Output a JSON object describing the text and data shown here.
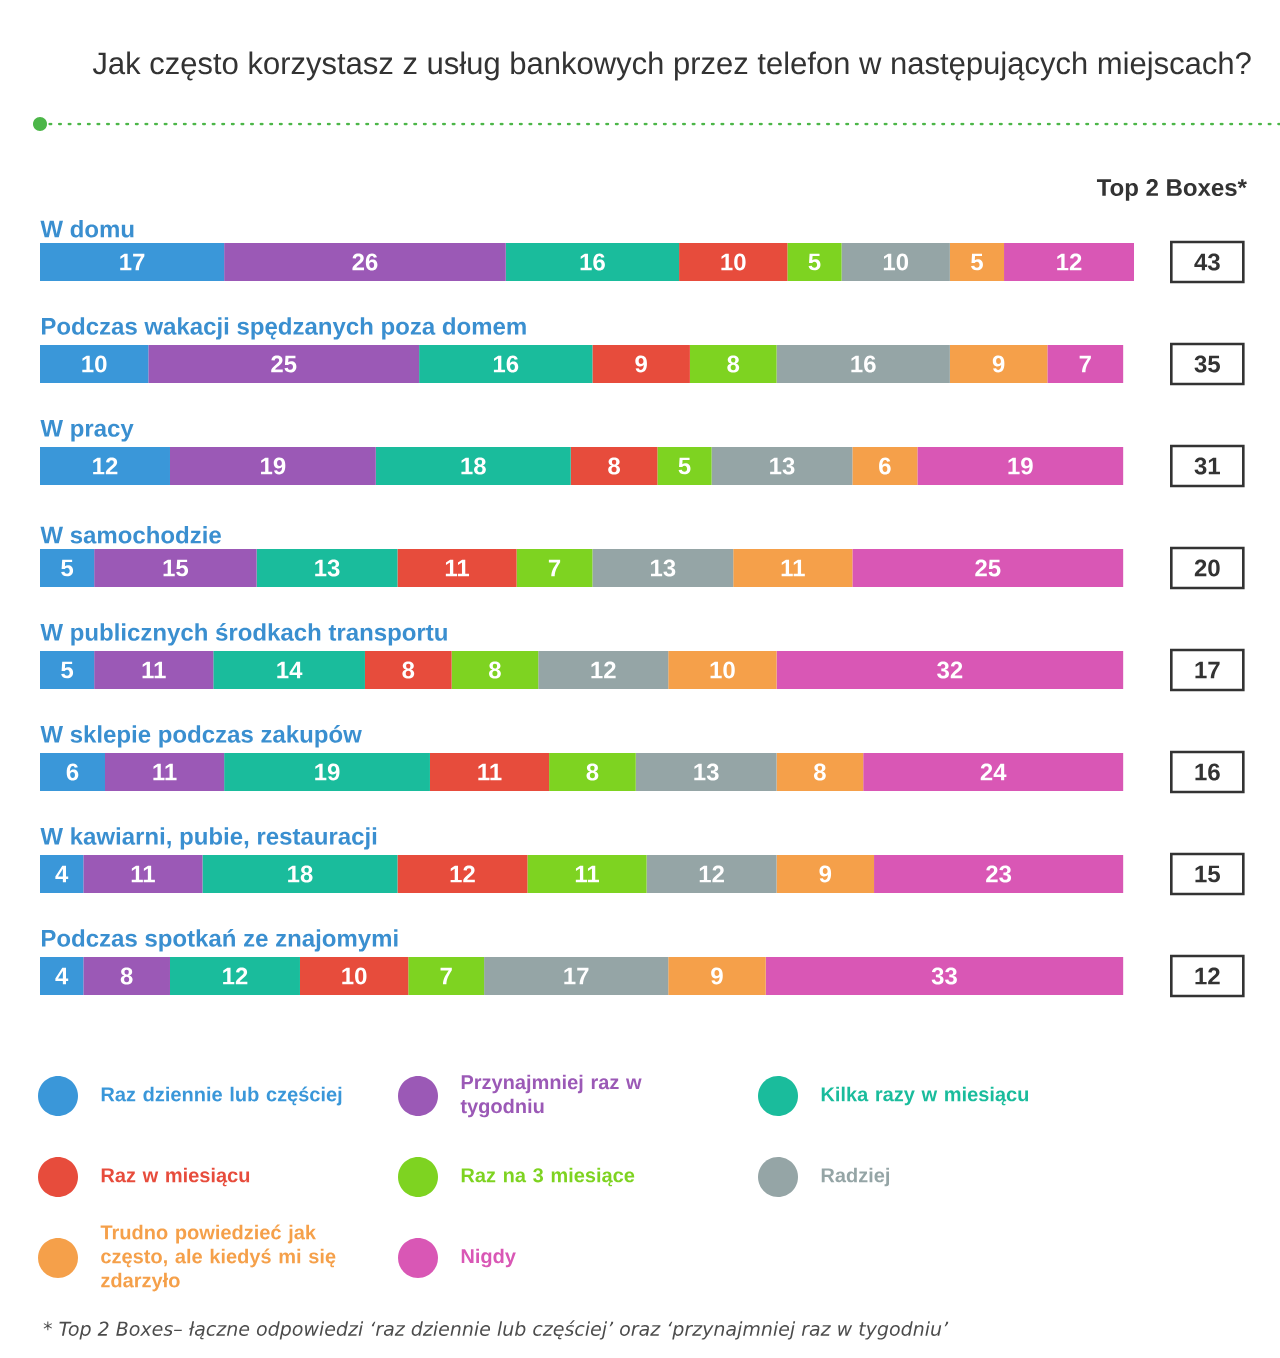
{
  "chart_data": {
    "type": "bar",
    "orientation": "horizontal",
    "stacked": true,
    "data_labels": true,
    "legend": "bottom",
    "title": "Jak często korzystasz z usług bankowych przez telefon w następujących miejscach?",
    "categories": [
      "W domu",
      "Podczas wakacji spędzanych poza domem",
      "W pracy",
      "W samochodzie",
      "W publicznych środkach transportu",
      "W sklepie podczas zakupów",
      "W kawiarni, pubie, restauracji",
      "Podczas spotkań ze znajomymi"
    ],
    "series": [
      {
        "name": "Raz dziennie lub częściej",
        "color": "#3a97d9",
        "values": [
          17,
          10,
          12,
          5,
          5,
          6,
          4,
          4
        ]
      },
      {
        "name": "Przynajmniej raz w tygodniu",
        "color": "#9b59b6",
        "values": [
          26,
          25,
          19,
          15,
          11,
          11,
          11,
          8
        ]
      },
      {
        "name": "Kilka razy w miesiącu",
        "color": "#1abc9c",
        "values": [
          16,
          16,
          18,
          13,
          14,
          19,
          18,
          12
        ]
      },
      {
        "name": "Raz w miesiącu",
        "color": "#e74c3c",
        "values": [
          10,
          9,
          8,
          11,
          8,
          11,
          12,
          10
        ]
      },
      {
        "name": "Raz na 3 miesiące",
        "color": "#7ed321",
        "values": [
          5,
          8,
          5,
          7,
          8,
          8,
          11,
          7
        ]
      },
      {
        "name": "Radziej",
        "color": "#95a5a6",
        "values": [
          10,
          16,
          13,
          13,
          12,
          13,
          12,
          17
        ]
      },
      {
        "name": "Trudno powiedzieć jak często, ale kiedyś mi się zdarzyło",
        "color": "#f5a04a",
        "values": [
          5,
          9,
          6,
          11,
          10,
          8,
          9,
          9
        ]
      },
      {
        "name": "Nigdy",
        "color": "#d957b5",
        "values": [
          12,
          7,
          19,
          25,
          32,
          24,
          23,
          33
        ]
      }
    ],
    "annotations": [
      "Top 2 Boxes*",
      "* Top 2 Boxes– łączne odpowiedzi ‘raz dziennie lub częściej’ oraz ‘przynajmniej raz w tygodniu’",
      "43",
      "35",
      "31",
      "20",
      "17",
      "16",
      "15",
      "12"
    ]
  }
}
